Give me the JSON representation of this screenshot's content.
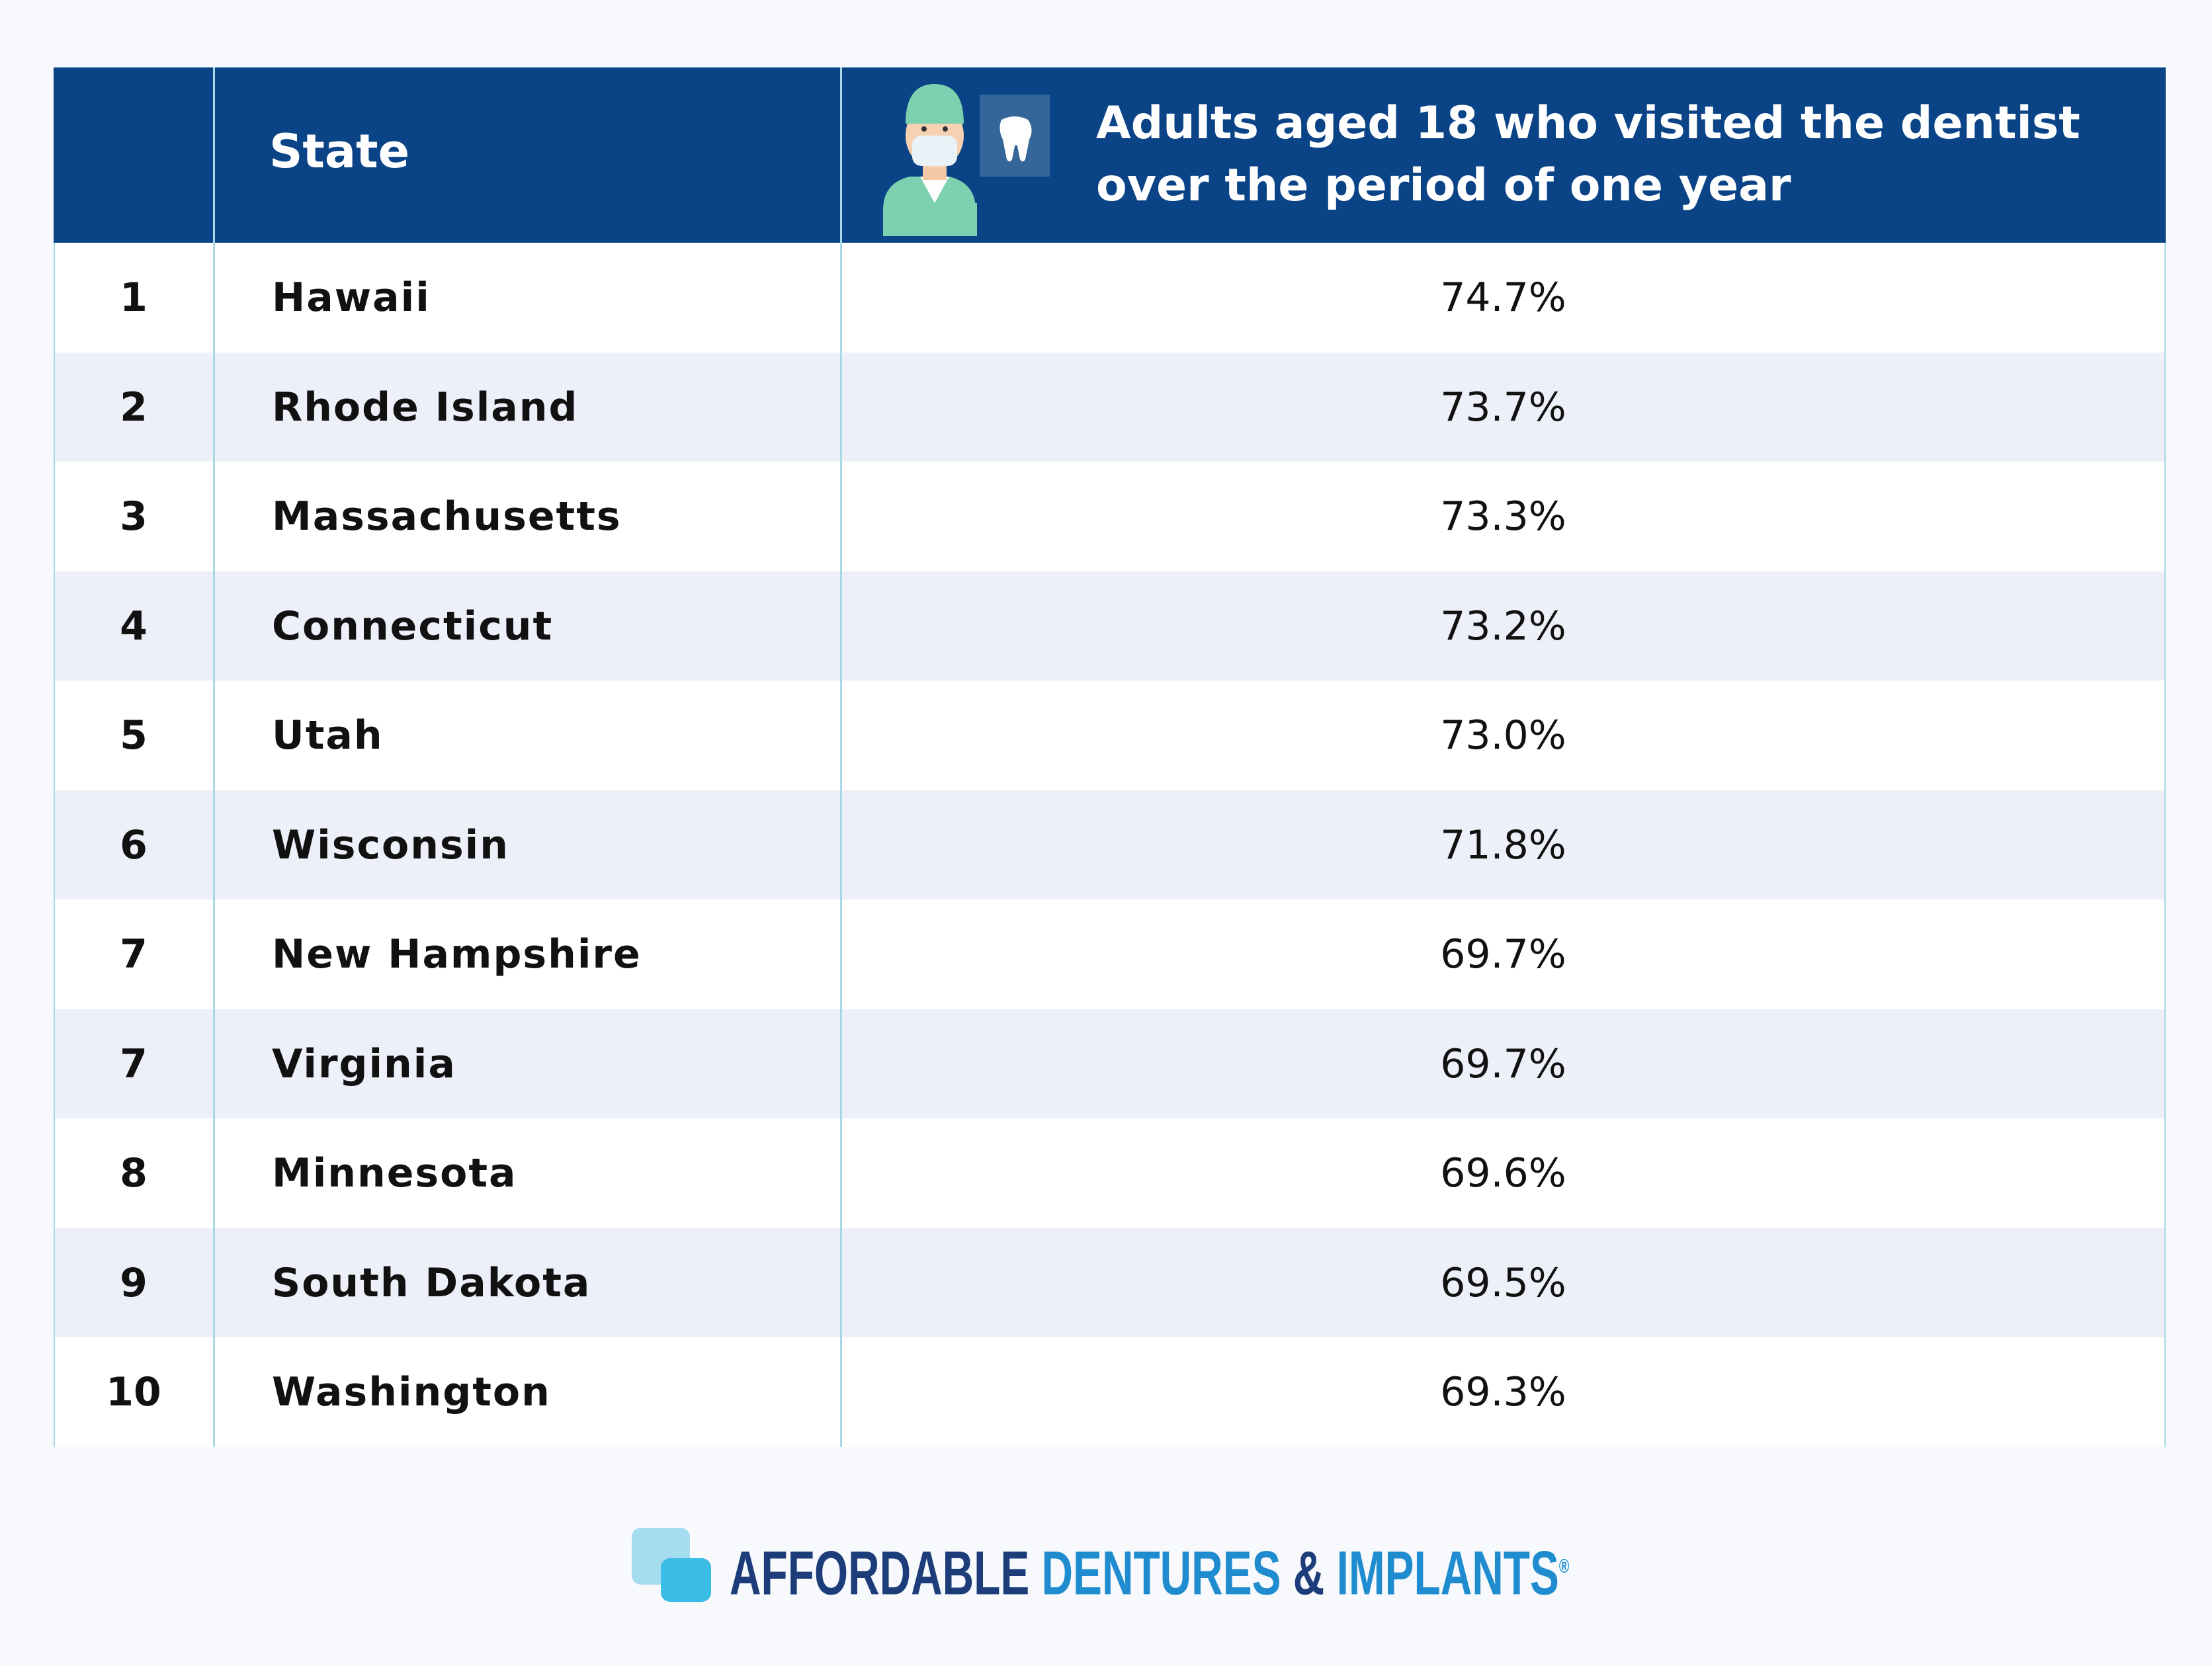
{
  "header": {
    "state": "State",
    "metric": "Adults aged 18 who visited the dentist over the period of one year"
  },
  "table": {
    "rows": [
      [
        1,
        "Hawaii",
        "74.7%"
      ],
      [
        2,
        "Rhode Island",
        "73.7%"
      ],
      [
        3,
        "Massachusetts",
        "73.3%"
      ],
      [
        4,
        "Connecticut",
        "73.2%"
      ],
      [
        5,
        "Utah",
        "73.0%"
      ],
      [
        6,
        "Wisconsin",
        "71.8%"
      ],
      [
        7,
        "New Hampshire",
        "69.7%"
      ],
      [
        7,
        "Virginia",
        "69.7%"
      ],
      [
        8,
        "Minnesota",
        "69.6%"
      ],
      [
        9,
        "South Dakota",
        "69.5%"
      ],
      [
        10,
        "Washington",
        "69.3%"
      ]
    ]
  },
  "logo": {
    "parts": [
      "AFFORDABLE",
      "DENTURES",
      "&",
      "IMPLANTS",
      "®"
    ]
  }
}
